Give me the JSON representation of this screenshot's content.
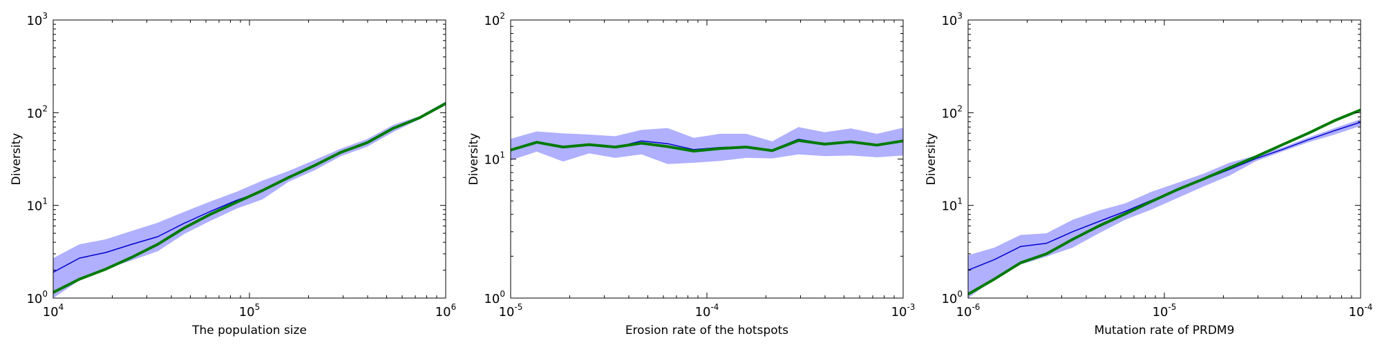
{
  "chart_data": [
    {
      "type": "line",
      "xlabel": "The population size",
      "ylabel": "Diversity",
      "xscale": "log",
      "yscale": "log",
      "xlim": [
        10000,
        1000000
      ],
      "ylim": [
        1,
        1000
      ],
      "xtick_labels": [
        {
          "base": "10",
          "exp": "4"
        },
        {
          "base": "10",
          "exp": "5"
        },
        {
          "base": "10",
          "exp": "6"
        }
      ],
      "ytick_labels": [
        {
          "base": "10",
          "exp": "0"
        },
        {
          "base": "10",
          "exp": "1"
        },
        {
          "base": "10",
          "exp": "2"
        },
        {
          "base": "10",
          "exp": "3"
        }
      ],
      "x": [
        10000,
        13600,
        18500,
        25100,
        34100,
        46400,
        63100,
        85800,
        116600,
        158500,
        215400,
        292900,
        398100,
        541200,
        735600,
        1000000
      ],
      "band": {
        "color": "#b0b0ff",
        "lower": [
          1.0,
          1.55,
          2.05,
          2.55,
          3.2,
          4.9,
          6.8,
          9.2,
          11.6,
          18.0,
          24.0,
          34.0,
          43.0,
          62.0,
          85.0,
          120.0
        ],
        "upper": [
          2.7,
          3.8,
          4.3,
          5.3,
          6.5,
          8.5,
          11.0,
          14.0,
          18.5,
          23.5,
          31.0,
          41.0,
          52.0,
          74.0,
          92.0,
          132.0
        ]
      },
      "series": [
        {
          "color": "#0000cc",
          "width": 1.5,
          "values": [
            1.9,
            2.7,
            3.1,
            3.8,
            4.6,
            6.4,
            8.6,
            11.3,
            14.2,
            20.5,
            27.0,
            37.5,
            47.0,
            68.0,
            88.0,
            125.0
          ]
        },
        {
          "color": "#007a00",
          "width": 4,
          "values": [
            1.15,
            1.6,
            2.05,
            2.75,
            3.8,
            5.7,
            8.0,
            10.8,
            14.5,
            20.0,
            27.0,
            37.5,
            47.5,
            68.0,
            88.0,
            126.0
          ]
        }
      ]
    },
    {
      "type": "line",
      "xlabel": "Erosion rate of the hotspots",
      "ylabel": "Diversity",
      "xscale": "log",
      "yscale": "log",
      "xlim": [
        1e-05,
        0.001
      ],
      "ylim": [
        1,
        100
      ],
      "xtick_labels": [
        {
          "base": "10",
          "exp": "-5"
        },
        {
          "base": "10",
          "exp": "-4"
        },
        {
          "base": "10",
          "exp": "-3"
        }
      ],
      "ytick_labels": [
        {
          "base": "10",
          "exp": "0"
        },
        {
          "base": "10",
          "exp": "1"
        },
        {
          "base": "10",
          "exp": "2"
        }
      ],
      "x": [
        1e-05,
        1.36e-05,
        1.85e-05,
        2.51e-05,
        3.41e-05,
        4.64e-05,
        6.31e-05,
        8.58e-05,
        0.0001166,
        0.0001585,
        0.0002154,
        0.0002929,
        0.0003981,
        0.0005412,
        0.0007356,
        0.001
      ],
      "band": {
        "color": "#b0b0ff",
        "lower": [
          9.8,
          11.3,
          9.6,
          11.0,
          10.2,
          10.8,
          9.2,
          9.4,
          9.7,
          10.2,
          10.1,
          10.8,
          10.5,
          10.6,
          10.3,
          10.6
        ],
        "upper": [
          14.0,
          15.8,
          15.3,
          15.0,
          14.6,
          16.2,
          16.7,
          14.2,
          15.2,
          15.2,
          13.4,
          17.0,
          15.6,
          16.6,
          15.2,
          16.8
        ]
      },
      "series": [
        {
          "color": "#0000cc",
          "width": 1.5,
          "values": [
            11.6,
            13.3,
            12.3,
            12.7,
            12.1,
            13.5,
            12.9,
            11.7,
            12.1,
            12.3,
            11.6,
            13.9,
            12.9,
            13.4,
            12.6,
            13.6
          ]
        },
        {
          "color": "#007a00",
          "width": 4,
          "values": [
            11.6,
            13.2,
            12.2,
            12.7,
            12.2,
            13.0,
            12.3,
            11.4,
            11.9,
            12.2,
            11.5,
            13.6,
            12.8,
            13.3,
            12.6,
            13.5
          ]
        }
      ]
    },
    {
      "type": "line",
      "xlabel": "Mutation rate of PRDM9",
      "ylabel": "Diversity",
      "xscale": "log",
      "yscale": "log",
      "xlim": [
        1e-06,
        0.0001
      ],
      "ylim": [
        1,
        1000
      ],
      "xtick_labels": [
        {
          "base": "10",
          "exp": "-6"
        },
        {
          "base": "10",
          "exp": "-5"
        },
        {
          "base": "10",
          "exp": "-4"
        }
      ],
      "ytick_labels": [
        {
          "base": "10",
          "exp": "0"
        },
        {
          "base": "10",
          "exp": "1"
        },
        {
          "base": "10",
          "exp": "2"
        },
        {
          "base": "10",
          "exp": "3"
        }
      ],
      "x": [
        1e-06,
        1.36e-06,
        1.85e-06,
        2.51e-06,
        3.41e-06,
        4.64e-06,
        6.31e-06,
        8.58e-06,
        1.166e-05,
        1.585e-05,
        2.154e-05,
        2.929e-05,
        3.981e-05,
        5.412e-05,
        7.356e-05,
        0.0001
      ],
      "band": {
        "color": "#b0b0ff",
        "lower": [
          1.0,
          1.6,
          2.3,
          2.8,
          3.5,
          5.0,
          7.0,
          9.0,
          12.0,
          16.0,
          21.0,
          30.0,
          38.0,
          48.0,
          58.0,
          72.0
        ],
        "upper": [
          2.9,
          3.5,
          4.8,
          5.0,
          7.0,
          8.8,
          10.5,
          14.0,
          17.5,
          22.0,
          29.0,
          34.5,
          42.0,
          54.0,
          68.0,
          85.0
        ]
      },
      "series": [
        {
          "color": "#0000cc",
          "width": 1.5,
          "values": [
            2.0,
            2.6,
            3.6,
            3.9,
            5.2,
            6.7,
            8.6,
            11.3,
            14.5,
            19.0,
            24.5,
            32.0,
            40.0,
            51.0,
            64.0,
            79.0
          ]
        },
        {
          "color": "#007a00",
          "width": 4,
          "values": [
            1.1,
            1.6,
            2.4,
            3.0,
            4.3,
            6.0,
            8.1,
            11.0,
            14.8,
            19.3,
            25.5,
            33.5,
            45.0,
            60.0,
            82.0,
            107.0
          ]
        }
      ]
    }
  ]
}
